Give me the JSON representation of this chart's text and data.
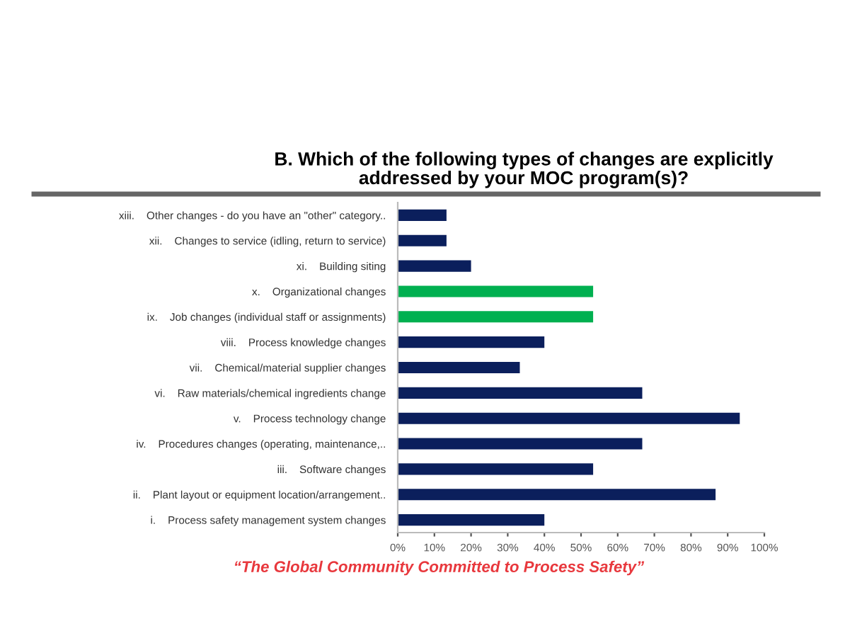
{
  "chart_data": {
    "type": "bar",
    "orientation": "horizontal",
    "title": "B. Which of the following types of changes are explicitly\naddressed by your MOC program(s)?",
    "categories": [
      "xiii.    Other changes - do you have an \"other\" category..",
      "xii.    Changes to service (idling, return to service)",
      "xi.    Building siting",
      "x.    Organizational changes",
      "ix.    Job changes (individual staff or assignments)",
      "viii.    Process knowledge changes",
      "vii.    Chemical/material supplier changes",
      "vi.    Raw materials/chemical ingredients change",
      "v.    Process technology change",
      "iv.    Procedures changes (operating, maintenance,..",
      "iii.    Software changes",
      "ii.    Plant layout or equipment location/arrangement..",
      "i.    Process safety management system changes"
    ],
    "values": [
      13.3,
      13.3,
      20,
      53.3,
      53.3,
      40,
      33.3,
      66.7,
      93.3,
      66.7,
      53.3,
      86.7,
      40
    ],
    "colors": [
      "#0b1f5c",
      "#0b1f5c",
      "#0b1f5c",
      "#00b050",
      "#00b050",
      "#0b1f5c",
      "#0b1f5c",
      "#0b1f5c",
      "#0b1f5c",
      "#0b1f5c",
      "#0b1f5c",
      "#0b1f5c",
      "#0b1f5c"
    ],
    "xlim": [
      0,
      100
    ],
    "xticks": [
      {
        "value": 0,
        "label": "0%"
      },
      {
        "value": 10,
        "label": "10%"
      },
      {
        "value": 20,
        "label": "20%"
      },
      {
        "value": 30,
        "label": "30%"
      },
      {
        "value": 40,
        "label": "40%"
      },
      {
        "value": 50,
        "label": "50%"
      },
      {
        "value": 60,
        "label": "60%"
      },
      {
        "value": 70,
        "label": "70%"
      },
      {
        "value": 80,
        "label": "80%"
      },
      {
        "value": 90,
        "label": "90%"
      },
      {
        "value": 100,
        "label": "100%"
      }
    ],
    "grid": false,
    "legend": false,
    "annotations": [
      "“The Global Community Committed to Process Safety”"
    ]
  }
}
